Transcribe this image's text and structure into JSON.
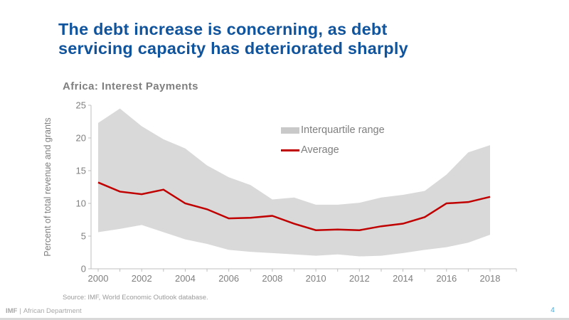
{
  "slide": {
    "title_line1": "The debt increase is concerning, as debt",
    "title_line2": "servicing capacity has deteriorated sharply",
    "title_color": "#10549E"
  },
  "chart": {
    "heading": "Africa: Interest Payments",
    "source": "Source: IMF, World Economic Outlook database."
  },
  "chart_data": {
    "type": "area",
    "title": "Africa: Interest Payments",
    "xlabel": "",
    "ylabel": "Percent of total revenue and grants",
    "ylim": [
      0,
      25
    ],
    "ytick_step": 5,
    "x": [
      2000,
      2001,
      2002,
      2003,
      2004,
      2005,
      2006,
      2007,
      2008,
      2009,
      2010,
      2011,
      2012,
      2013,
      2014,
      2015,
      2016,
      2017,
      2018
    ],
    "xticks_labeled": [
      2000,
      2002,
      2004,
      2006,
      2008,
      2010,
      2012,
      2014,
      2016,
      2018
    ],
    "band": {
      "name": "Interquartile range",
      "color": "#D9D9D9",
      "upper": [
        22.3,
        24.5,
        21.8,
        19.8,
        18.4,
        15.8,
        14.0,
        12.8,
        10.6,
        10.9,
        9.8,
        9.8,
        10.1,
        10.9,
        11.3,
        11.9,
        14.4,
        17.8,
        18.9
      ],
      "lower": [
        5.6,
        6.1,
        6.7,
        5.6,
        4.5,
        3.8,
        2.9,
        2.6,
        2.4,
        2.2,
        2.0,
        2.2,
        1.9,
        2.0,
        2.4,
        2.9,
        3.3,
        4.0,
        5.2
      ]
    },
    "line": {
      "name": "Average",
      "color": "#C00000",
      "values": [
        13.2,
        11.8,
        11.4,
        12.1,
        10.0,
        9.1,
        7.7,
        7.8,
        8.1,
        6.9,
        5.9,
        6.0,
        5.9,
        6.5,
        6.9,
        7.9,
        10.0,
        10.2,
        11.0
      ]
    },
    "grid": false,
    "legend_position": "inside-top-center",
    "axis_color": "#BFBFBF",
    "tick_label_color": "#7F7F7F"
  },
  "footer": {
    "org": "IMF",
    "divider": "|",
    "department": "African Department",
    "page": "4"
  }
}
